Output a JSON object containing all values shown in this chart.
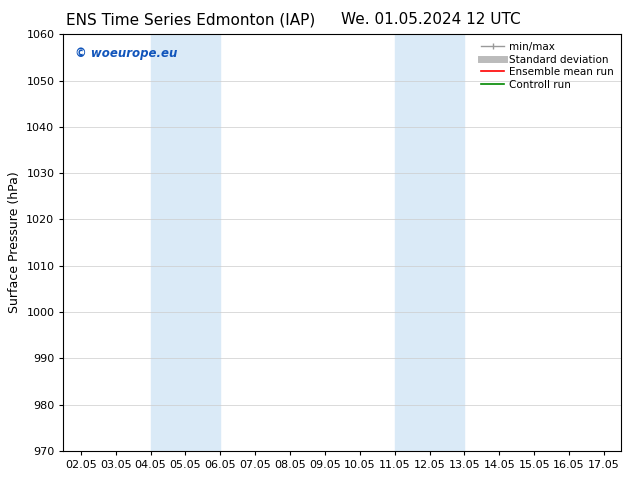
{
  "title_left": "ENS Time Series Edmonton (IAP)",
  "title_right": "We. 01.05.2024 12 UTC",
  "ylabel": "Surface Pressure (hPa)",
  "ylim": [
    970,
    1060
  ],
  "yticks": [
    970,
    980,
    990,
    1000,
    1010,
    1020,
    1030,
    1040,
    1050,
    1060
  ],
  "xlim": [
    0,
    15
  ],
  "xtick_labels": [
    "02.05",
    "03.05",
    "04.05",
    "05.05",
    "06.05",
    "07.05",
    "08.05",
    "09.05",
    "10.05",
    "11.05",
    "12.05",
    "13.05",
    "14.05",
    "15.05",
    "16.05",
    "17.05"
  ],
  "xtick_positions": [
    0,
    1,
    2,
    3,
    4,
    5,
    6,
    7,
    8,
    9,
    10,
    11,
    12,
    13,
    14,
    15
  ],
  "shaded_regions": [
    {
      "xmin": 2,
      "xmax": 4,
      "color": "#daeaf7"
    },
    {
      "xmin": 9,
      "xmax": 11,
      "color": "#daeaf7"
    }
  ],
  "watermark_text": "© woeurope.eu",
  "watermark_color": "#1155bb",
  "legend_entries": [
    {
      "label": "min/max",
      "color": "#999999",
      "lw": 1.0,
      "ls": "-",
      "marker": true
    },
    {
      "label": "Standard deviation",
      "color": "#bbbbbb",
      "lw": 5,
      "ls": "-",
      "marker": false
    },
    {
      "label": "Ensemble mean run",
      "color": "#ff0000",
      "lw": 1.2,
      "ls": "-",
      "marker": false
    },
    {
      "label": "Controll run",
      "color": "#008800",
      "lw": 1.2,
      "ls": "-",
      "marker": false
    }
  ],
  "bg_color": "#ffffff",
  "grid_color": "#cccccc",
  "title_fontsize": 11,
  "label_fontsize": 9,
  "tick_fontsize": 8,
  "legend_fontsize": 7.5
}
